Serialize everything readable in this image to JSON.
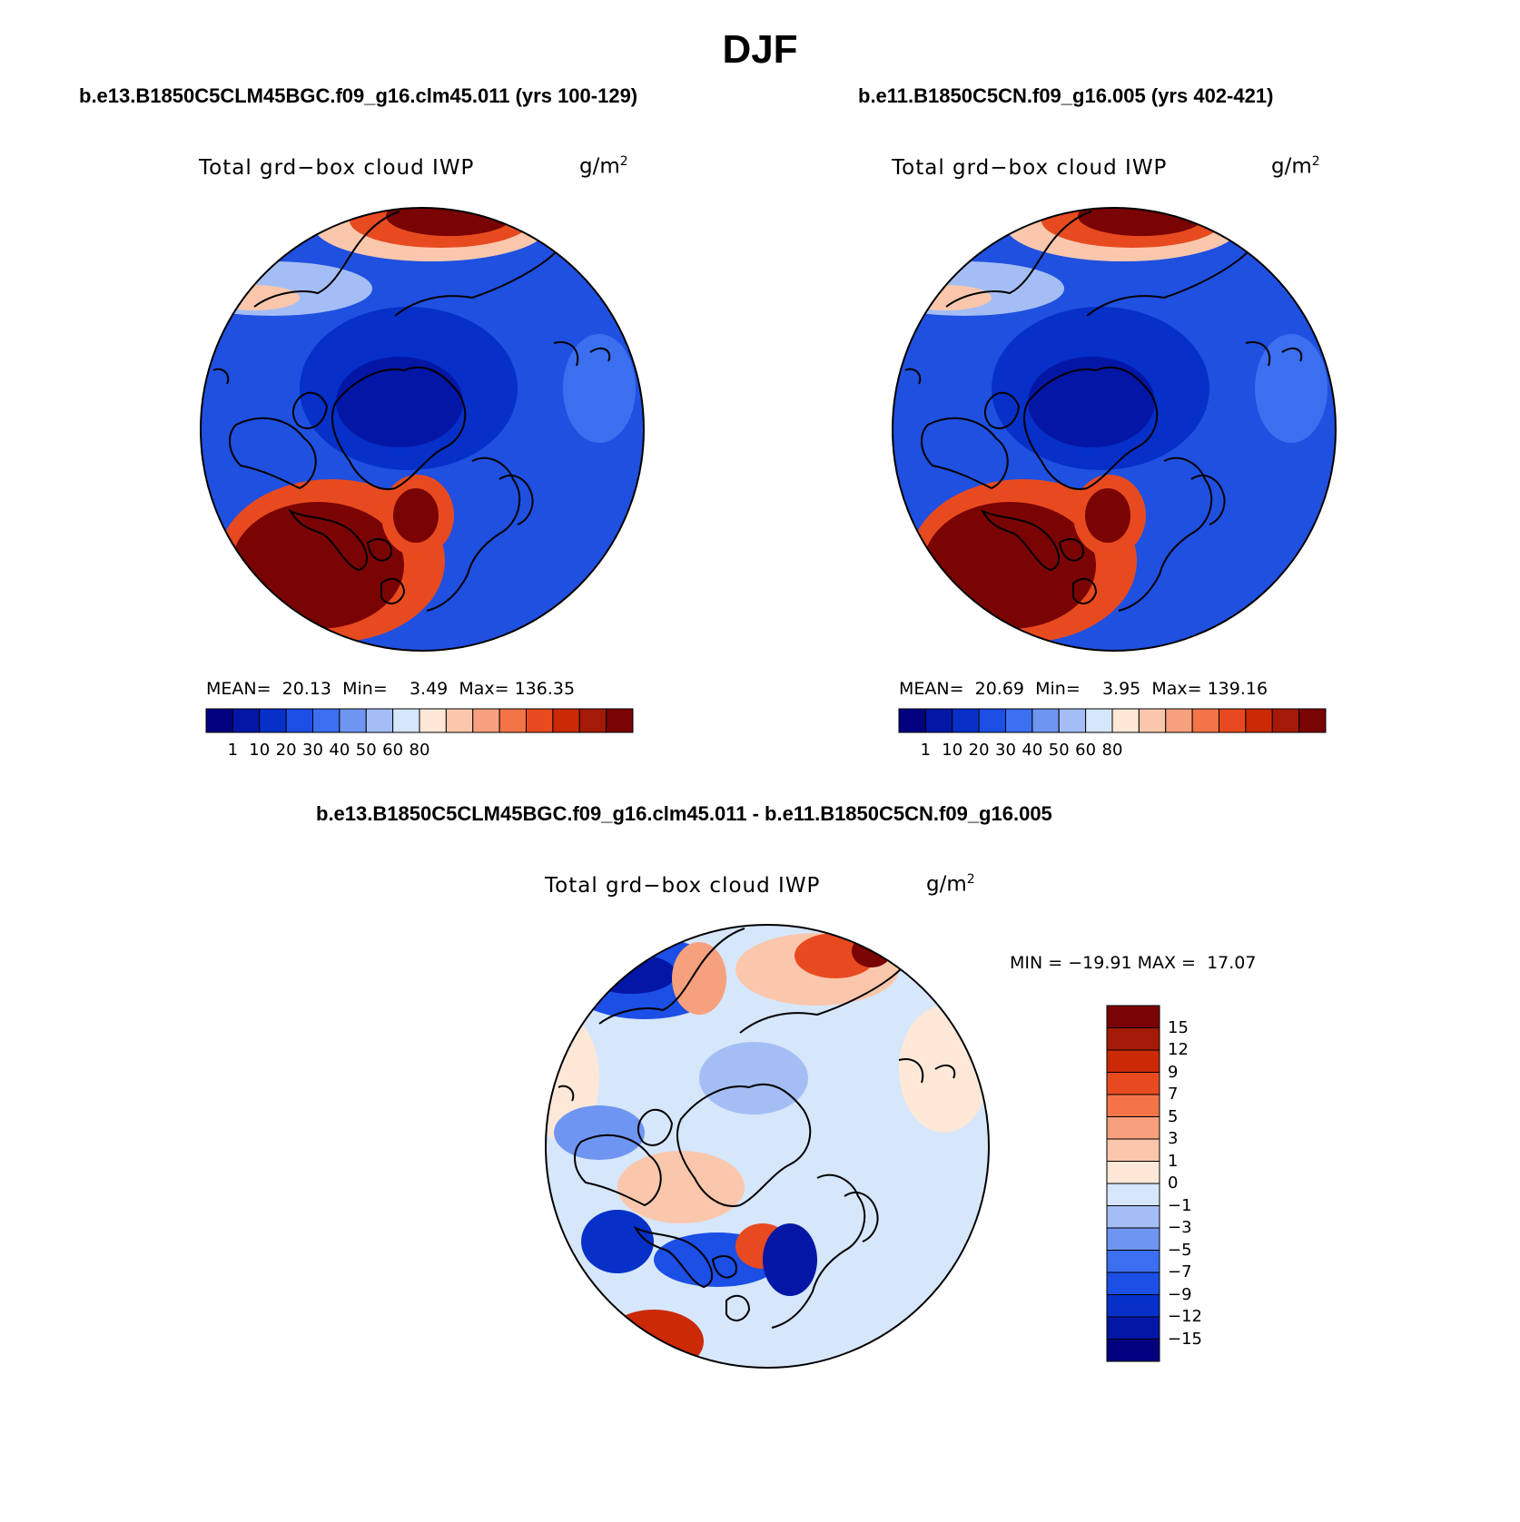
{
  "title": "DJF",
  "colors": {
    "abs_scale": [
      "#03007f",
      "#0416a6",
      "#0630c8",
      "#1b4fe6",
      "#3b6ff0",
      "#6f95f2",
      "#a4bef5",
      "#d6e6fb",
      "#fde8d8",
      "#fac7ad",
      "#f7a07d",
      "#f27447",
      "#e84a1f",
      "#cc2906",
      "#a51a06",
      "#7a0303"
    ],
    "diff_scale": [
      "#03007f",
      "#0416a6",
      "#0630c8",
      "#1b4fe6",
      "#3b6ff0",
      "#6f95f2",
      "#a4bef5",
      "#d6e6fb",
      "#fde8d8",
      "#fac7ad",
      "#f7a07d",
      "#f27447",
      "#e84a1f",
      "#cc2906",
      "#a51a06",
      "#7a0303"
    ],
    "map_base": "#1f50e0",
    "diff_base": "#d6e6fb"
  },
  "panels": {
    "left": {
      "case_title": "b.e13.B1850C5CLM45BGC.f09_g16.clm45.011 (yrs 100-129)",
      "variable": "Total grd−box cloud IWP",
      "units_base": "g/m",
      "units_exp": "2",
      "mean_label": "MEAN=",
      "mean": "20.13",
      "min_label": "Min=",
      "min": "3.49",
      "max_label": "Max=",
      "max": "136.35",
      "ticks": [
        "1",
        "10",
        "20",
        "30",
        "40",
        "50",
        "60",
        "80"
      ]
    },
    "right": {
      "case_title": "b.e11.B1850C5CN.f09_g16.005 (yrs 402-421)",
      "variable": "Total grd−box cloud IWP",
      "units_base": "g/m",
      "units_exp": "2",
      "mean_label": "MEAN=",
      "mean": "20.69",
      "min_label": "Min=",
      "min": "3.95",
      "max_label": "Max=",
      "max": "139.16",
      "ticks": [
        "1",
        "10",
        "20",
        "30",
        "40",
        "50",
        "60",
        "80"
      ]
    },
    "diff": {
      "case_title": "b.e13.B1850C5CLM45BGC.f09_g16.clm45.011 - b.e11.B1850C5CN.f09_g16.005",
      "variable": "Total grd−box cloud IWP",
      "units_base": "g/m",
      "units_exp": "2",
      "min_label": "MIN =",
      "min": "−19.91",
      "max_label": "MAX =",
      "max": "17.07",
      "ticks": [
        "15",
        "12",
        "9",
        "7",
        "5",
        "3",
        "1",
        "0",
        "−1",
        "−3",
        "−5",
        "−7",
        "−9",
        "−12",
        "−15"
      ]
    }
  }
}
